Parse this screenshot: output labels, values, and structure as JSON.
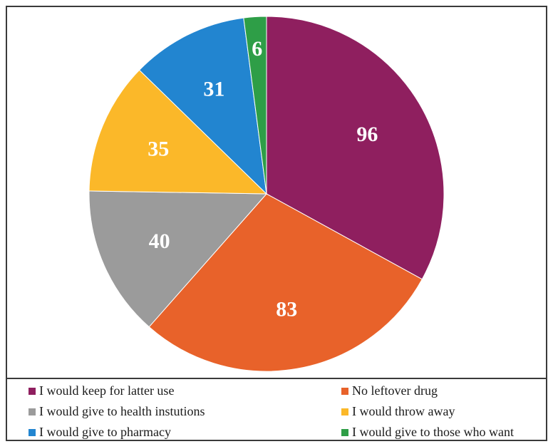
{
  "chart_data": {
    "type": "pie",
    "slices": [
      {
        "label": "I would keep for latter use",
        "value": 96,
        "color": "#8f1f5f"
      },
      {
        "label": "No leftover drug",
        "value": 83,
        "color": "#e8622a"
      },
      {
        "label": "I would give to health instutions",
        "value": 40,
        "color": "#9b9b9b"
      },
      {
        "label": "I would throw away",
        "value": 35,
        "color": "#fbb829"
      },
      {
        "label": "I would give to pharmacy",
        "value": 31,
        "color": "#2285d0"
      },
      {
        "label": "I would give to those who want",
        "value": 6,
        "color": "#2e9e47"
      }
    ],
    "start": "12 o'clock",
    "direction": "clockwise",
    "data_labels": "inside",
    "legend_position": "bottom"
  }
}
